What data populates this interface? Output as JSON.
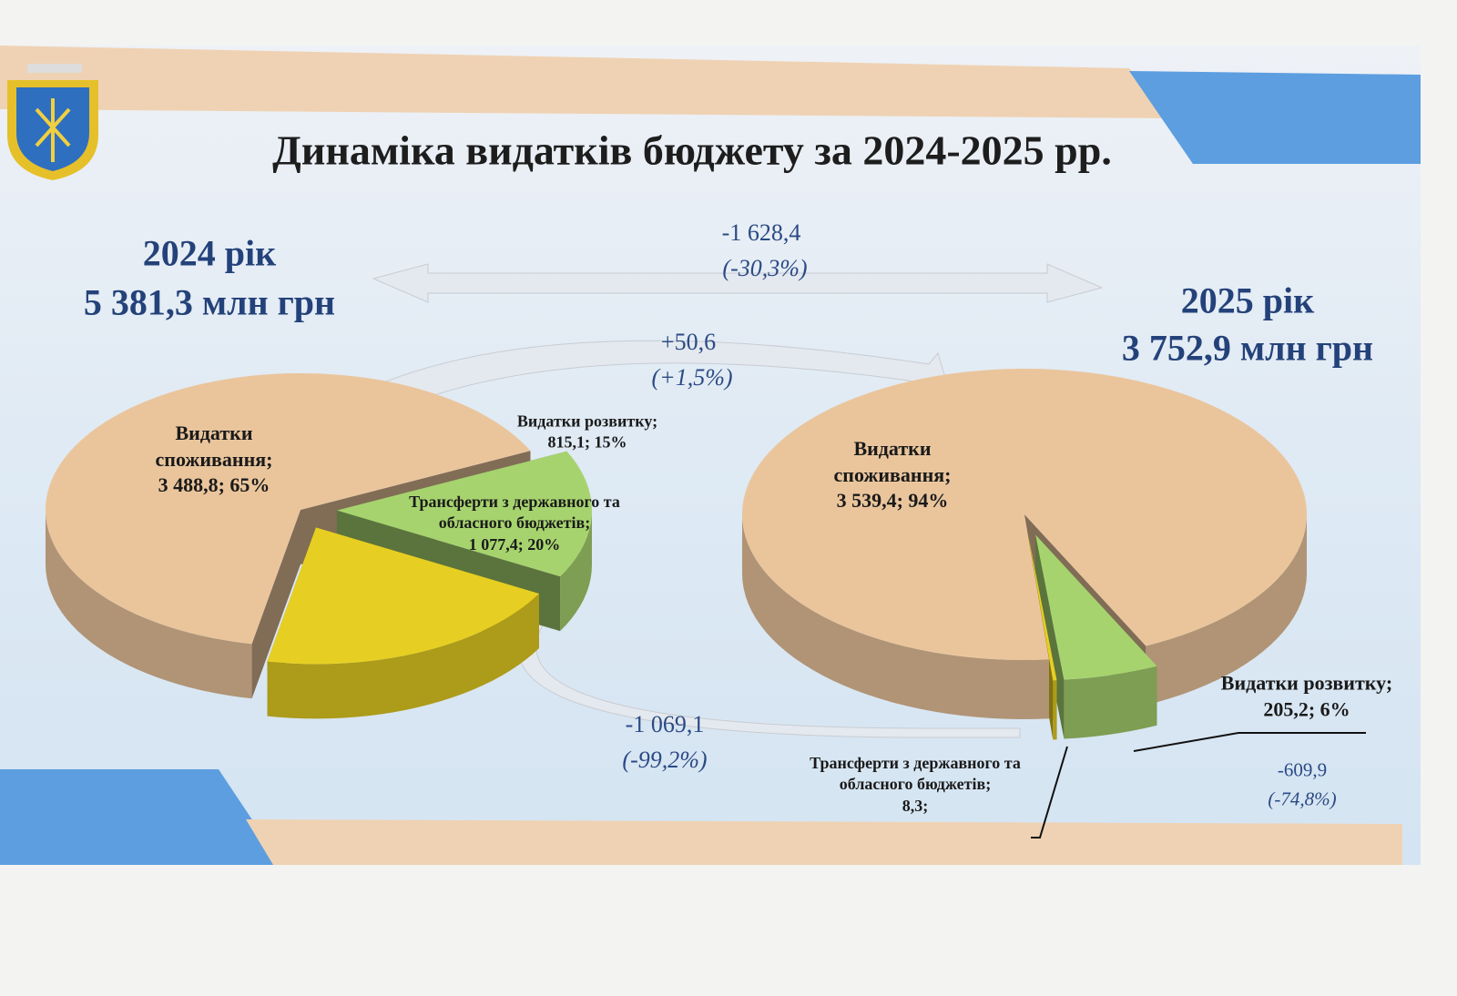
{
  "title": "Динаміка видатків бюджету за 2024-2025 рр.",
  "annotations": [
    {
      "change": "-1 628,4",
      "percent": "(-30,3%)"
    },
    {
      "change": "+50,6",
      "percent": "(+1,5%)"
    },
    {
      "change": "-1 069,1",
      "percent": "(-99,2%)"
    },
    {
      "change": "-609,9",
      "percent": "(-74,8%)"
    }
  ],
  "chart_data": [
    {
      "type": "pie",
      "title": "2024 рік",
      "subtitle": "5 381,3 млн грн",
      "categories": [
        "Видатки споживання;",
        "Видатки розвитку;",
        "Трансферти з державного та обласного бюджетів;"
      ],
      "values": [
        3488.8,
        815.1,
        1077.4
      ],
      "value_labels": [
        "3 488,8; 65%",
        "815,1; 15%",
        "1 077,4; 20%"
      ],
      "colors": [
        "#eac59c",
        "#a6d36e",
        "#e6cf22"
      ]
    },
    {
      "type": "pie",
      "title": "2025 рік",
      "subtitle": "3 752,9 млн грн",
      "categories": [
        "Видатки споживання;",
        "Видатки розвитку;",
        "Трансферти з державного та обласного бюджетів;"
      ],
      "values": [
        3539.4,
        205.2,
        8.3
      ],
      "value_labels": [
        "3 539,4; 94%",
        "205,2; 6%",
        "8,3;"
      ],
      "colors": [
        "#eac59c",
        "#a6d36e",
        "#e6cf22"
      ]
    }
  ]
}
